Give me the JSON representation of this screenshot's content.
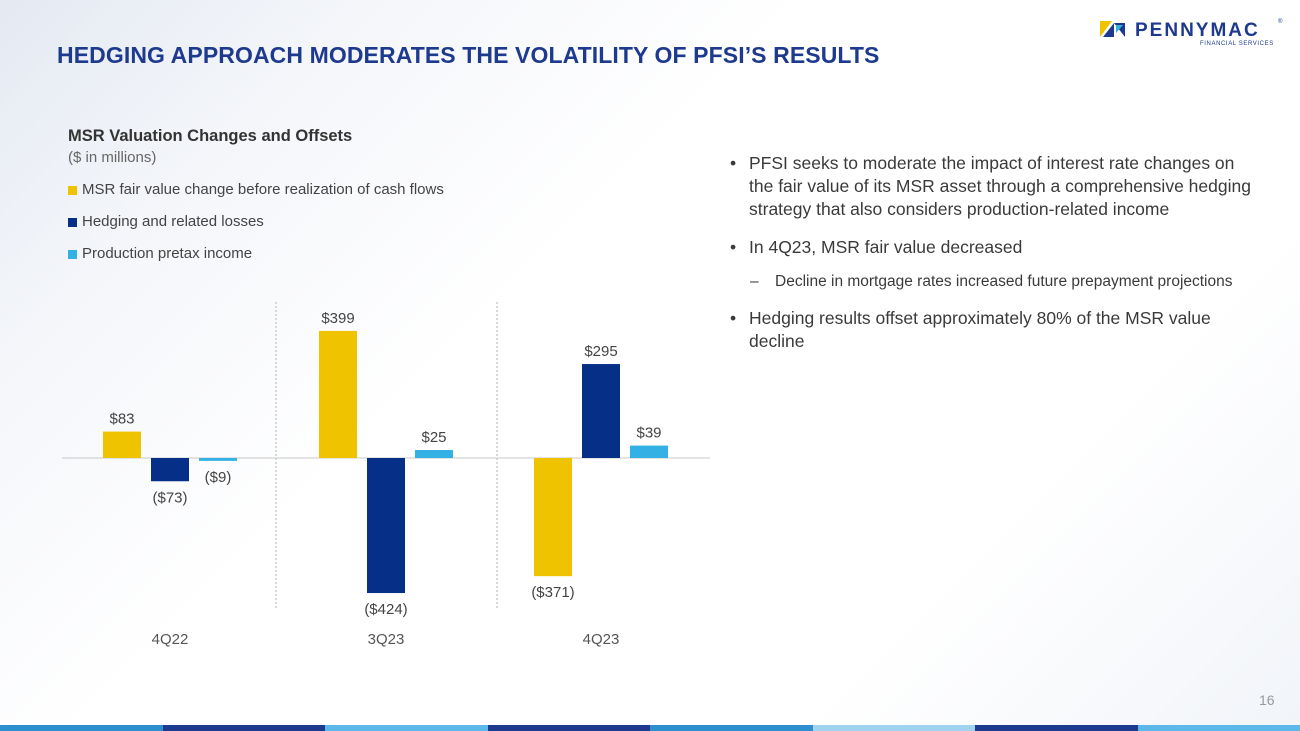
{
  "slide": {
    "title": "HEDGING APPROACH MODERATES THE VOLATILITY OF PFSI’S RESULTS",
    "page_number": "16"
  },
  "logo": {
    "name": "PENNYMAC",
    "subtitle": "FINANCIAL SERVICES",
    "reg_mark": "®"
  },
  "colors": {
    "title": "#1d3a8f",
    "msr": "#f0c300",
    "hedging": "#063087",
    "production": "#33b1e4"
  },
  "chart_data": {
    "type": "bar",
    "title": "MSR Valuation Changes and Offsets",
    "subtitle": "($ in millions)",
    "categories": [
      "4Q22",
      "3Q23",
      "4Q23"
    ],
    "series": [
      {
        "name": "MSR fair value change before realization of cash flows",
        "values": [
          83,
          399,
          -371
        ],
        "labels": [
          "$83",
          "$399",
          "($371)"
        ],
        "color": "#f0c300"
      },
      {
        "name": "Hedging and related losses",
        "values": [
          -73,
          -424,
          295
        ],
        "labels": [
          "($73)",
          "($424)",
          "$295"
        ],
        "color": "#063087"
      },
      {
        "name": "Production pretax income",
        "values": [
          -9,
          25,
          39
        ],
        "labels": [
          "($9)",
          "$25",
          "$39"
        ],
        "color": "#33b1e4"
      }
    ],
    "ylim": [
      -450,
      450
    ],
    "grid": false,
    "legend": "top-left"
  },
  "bullets": [
    {
      "text": "PFSI seeks to moderate the impact of interest rate changes on the fair value of its MSR asset through a comprehensive hedging strategy that also considers production-related income"
    },
    {
      "text": "In 4Q23, MSR fair value decreased"
    },
    {
      "text": "Hedging results offset approximately 80% of the MSR value decline"
    }
  ],
  "sub_bullets": [
    {
      "text": "Decline in mortgage rates increased future prepayment projections"
    }
  ]
}
